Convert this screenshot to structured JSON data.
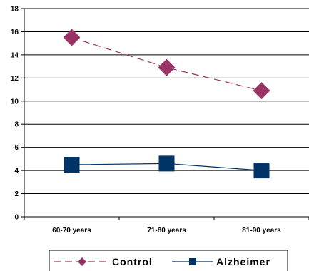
{
  "chart_data": {
    "type": "line",
    "categories": [
      "60-70 years",
      "71-80 years",
      "81-90 years"
    ],
    "ylim": [
      0,
      18
    ],
    "yticks": [
      "0",
      "2",
      "4",
      "6",
      "8",
      "10",
      "12",
      "14",
      "16",
      "18"
    ],
    "grid": true,
    "legend_position": "bottom",
    "series": [
      {
        "name": "Control",
        "values": [
          15.5,
          12.9,
          10.9
        ],
        "color": "#993366",
        "marker": "diamond",
        "line_style": "dashed"
      },
      {
        "name": "Alzheimer",
        "values": [
          4.5,
          4.6,
          4.0
        ],
        "color": "#003366",
        "marker": "square",
        "line_style": "solid"
      }
    ]
  }
}
